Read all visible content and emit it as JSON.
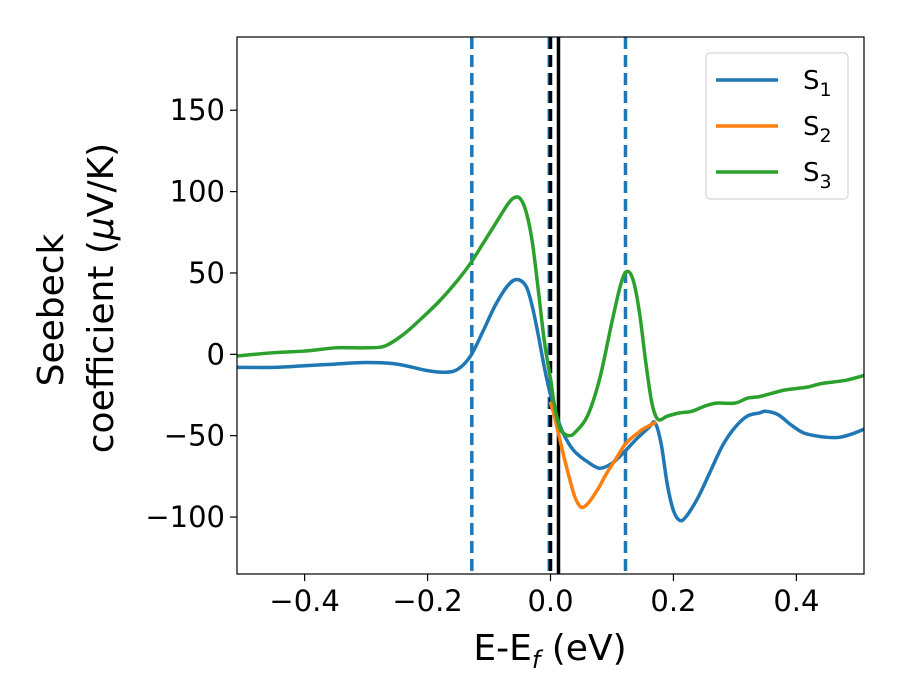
{
  "chart_data": {
    "type": "line",
    "xlabel_main": "E-E",
    "xlabel_sub": "f",
    "xlabel_unit": " (eV)",
    "ylabel_line1": "Seebeck",
    "ylabel_line2_text": "coefficient  (",
    "ylabel_mu": "μ",
    "ylabel_unit": "V/K)",
    "xlim": [
      -0.51,
      0.51
    ],
    "ylim": [
      -135,
      195
    ],
    "x_ticks": [
      -0.4,
      -0.2,
      0.0,
      0.2,
      0.4
    ],
    "x_tick_labels": [
      "−0.4",
      "−0.2",
      "0.0",
      "0.2",
      "0.4"
    ],
    "y_ticks": [
      -100,
      -50,
      0,
      50,
      100,
      150
    ],
    "y_tick_labels": [
      "−100",
      "−50",
      "0",
      "50",
      "100",
      "150"
    ],
    "grid": false,
    "legend_position": "top-right",
    "vlines": [
      {
        "x": -0.128,
        "style": "dashed",
        "color": "#1f77b4"
      },
      {
        "x": -0.002,
        "style": "dashed",
        "color": "#1f77b4"
      },
      {
        "x": 0.122,
        "style": "dashed",
        "color": "#1f77b4"
      },
      {
        "x": 0.0,
        "style": "dashed",
        "color": "#000000"
      },
      {
        "x": 0.013,
        "style": "solid",
        "color": "#000000"
      }
    ],
    "series": [
      {
        "name": "S",
        "sub": "1",
        "color": "#1f77b4",
        "x": [
          -0.51,
          -0.45,
          -0.4,
          -0.35,
          -0.3,
          -0.25,
          -0.2,
          -0.17,
          -0.15,
          -0.13,
          -0.11,
          -0.09,
          -0.07,
          -0.055,
          -0.04,
          -0.03,
          -0.02,
          -0.01,
          0.0,
          0.01,
          0.02,
          0.03,
          0.04,
          0.06,
          0.08,
          0.1,
          0.12,
          0.14,
          0.16,
          0.17,
          0.18,
          0.19,
          0.2,
          0.21,
          0.22,
          0.24,
          0.26,
          0.28,
          0.3,
          0.32,
          0.34,
          0.35,
          0.37,
          0.39,
          0.41,
          0.43,
          0.45,
          0.47,
          0.49,
          0.51
        ],
        "y": [
          -8,
          -8,
          -7,
          -6,
          -5,
          -6,
          -10,
          -11,
          -9,
          -1,
          14,
          30,
          42,
          46,
          42,
          30,
          12,
          -8,
          -25,
          -38,
          -48,
          -55,
          -60,
          -66,
          -70,
          -67,
          -60,
          -52,
          -45,
          -42,
          -55,
          -80,
          -96,
          -102,
          -100,
          -88,
          -72,
          -56,
          -45,
          -38,
          -36,
          -35,
          -37,
          -43,
          -48,
          -50,
          -51,
          -51,
          -49,
          -46
        ]
      },
      {
        "name": "S",
        "sub": "2",
        "color": "#ff7f0e",
        "x": [
          0.0,
          0.005,
          0.01,
          0.015,
          0.02,
          0.03,
          0.04,
          0.05,
          0.06,
          0.07,
          0.08,
          0.09,
          0.1,
          0.11,
          0.12,
          0.13,
          0.14,
          0.15,
          0.16,
          0.17
        ],
        "y": [
          -30,
          -36,
          -44,
          -52,
          -60,
          -75,
          -88,
          -94,
          -92,
          -87,
          -81,
          -74,
          -68,
          -62,
          -56,
          -52,
          -49,
          -46,
          -44,
          -42
        ]
      },
      {
        "name": "S",
        "sub": "3",
        "color": "#2ca02c",
        "x": [
          -0.51,
          -0.45,
          -0.4,
          -0.35,
          -0.32,
          -0.3,
          -0.27,
          -0.24,
          -0.21,
          -0.18,
          -0.15,
          -0.13,
          -0.11,
          -0.09,
          -0.07,
          -0.06,
          -0.05,
          -0.04,
          -0.03,
          -0.02,
          -0.01,
          0.0,
          0.005,
          0.01,
          0.015,
          0.02,
          0.03,
          0.04,
          0.06,
          0.08,
          0.1,
          0.115,
          0.125,
          0.135,
          0.145,
          0.155,
          0.165,
          0.175,
          0.19,
          0.21,
          0.23,
          0.25,
          0.27,
          0.3,
          0.32,
          0.34,
          0.36,
          0.38,
          0.4,
          0.42,
          0.44,
          0.46,
          0.48,
          0.51
        ],
        "y": [
          -1,
          1,
          2,
          4,
          4,
          4,
          5,
          12,
          22,
          33,
          46,
          56,
          68,
          80,
          92,
          96,
          96,
          88,
          70,
          40,
          8,
          -15,
          -28,
          -38,
          -45,
          -48,
          -50,
          -48,
          -38,
          -15,
          20,
          44,
          51,
          45,
          25,
          -5,
          -30,
          -40,
          -38,
          -36,
          -35,
          -32,
          -30,
          -30,
          -27,
          -26,
          -24,
          -22,
          -21,
          -20,
          -18,
          -17,
          -16,
          -13
        ]
      }
    ]
  }
}
